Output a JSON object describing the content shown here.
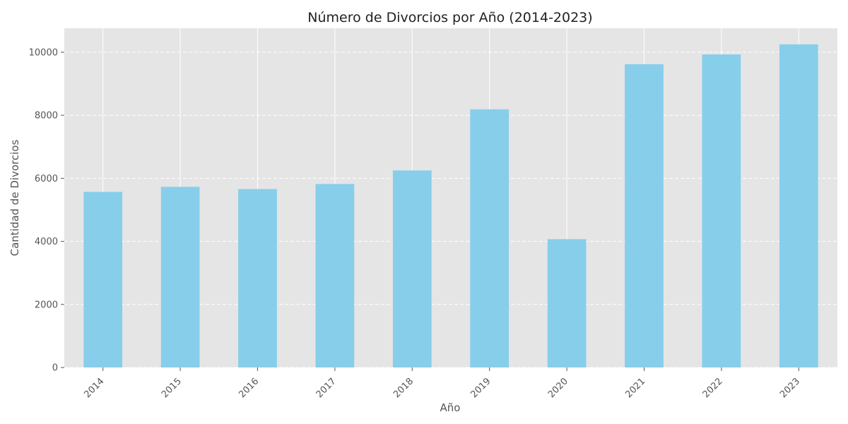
{
  "chart_data": {
    "type": "bar",
    "title": "Número de Divorcios por Año (2014-2023)",
    "xlabel": "Año",
    "ylabel": "Cantidad de Divorcios",
    "categories": [
      "2014",
      "2015",
      "2016",
      "2017",
      "2018",
      "2019",
      "2020",
      "2021",
      "2022",
      "2023"
    ],
    "values": [
      5570,
      5730,
      5660,
      5820,
      6250,
      8190,
      4070,
      9620,
      9930,
      10250
    ],
    "ylim": [
      0,
      10760
    ],
    "yticks": [
      0,
      2000,
      4000,
      6000,
      8000,
      10000
    ],
    "grid": true,
    "legend": "none",
    "colors": {
      "bar": "#87CEEB",
      "plot_background": "#E5E5E5",
      "grid": "#FFFFFF"
    }
  }
}
